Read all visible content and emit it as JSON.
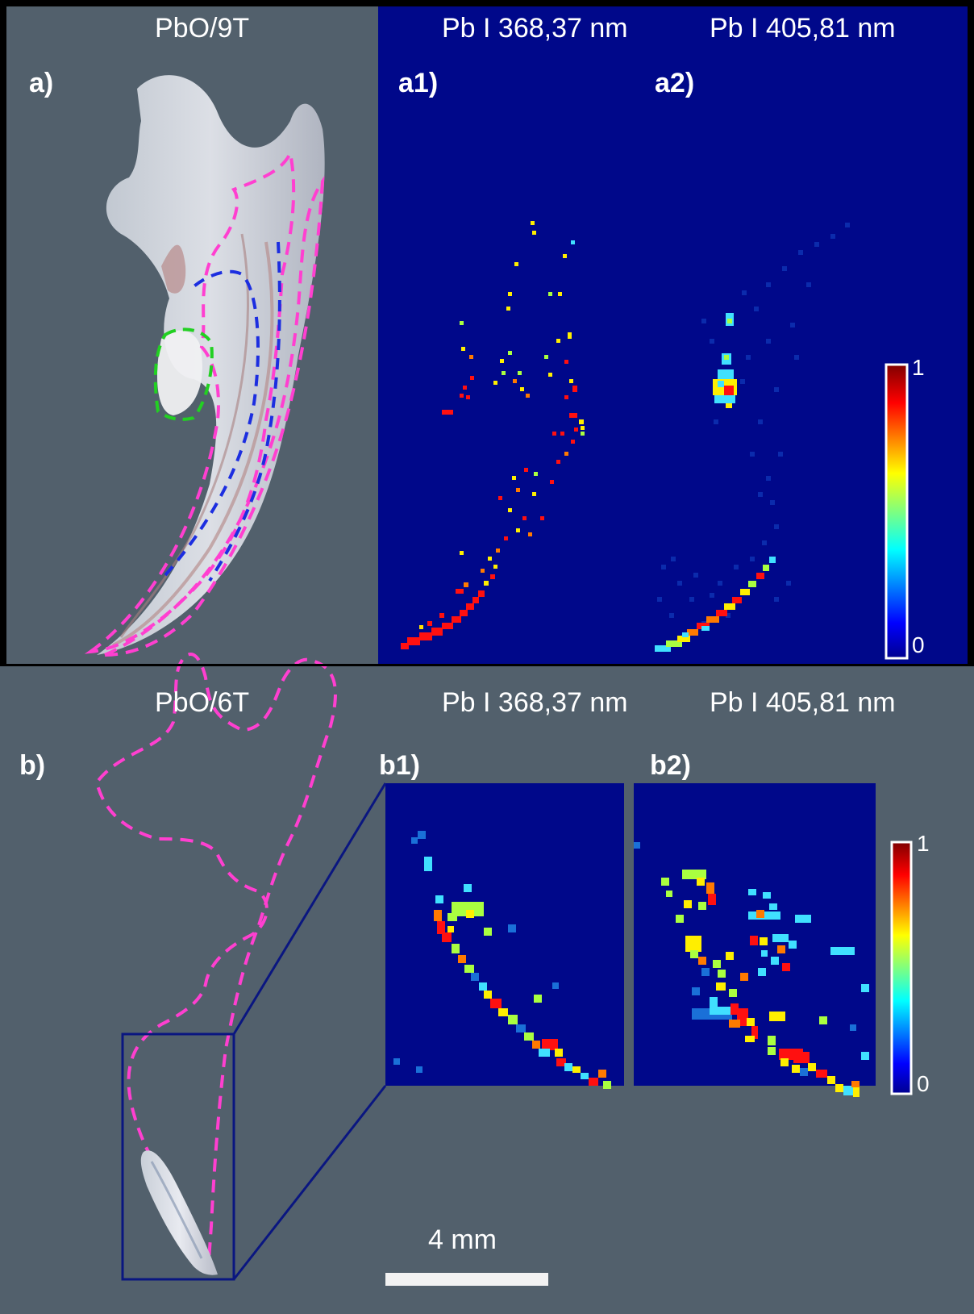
{
  "top": {
    "sample_title": "PbO/9T",
    "map1_title": "Pb I 368,37 nm",
    "map2_title": "Pb I 405,81 nm",
    "label_a": "a)",
    "label_a1": "a1)",
    "label_a2": "a2)",
    "colorbar_max": "1",
    "colorbar_min": "0"
  },
  "bottom": {
    "sample_title": "PbO/6T",
    "map1_title": "Pb I 368,37 nm",
    "map2_title": "Pb I 405,81 nm",
    "label_b": "b)",
    "label_b1": "b1)",
    "label_b2": "b2)",
    "colorbar_max": "1",
    "colorbar_min": "0",
    "scale_bar": "4 mm"
  },
  "colors": {
    "gray_bg": "#52606c",
    "map_bg": "#00088a",
    "outline_pink": "#ff3fd0",
    "outline_blue": "#1c2ee0",
    "outline_green": "#22d022",
    "zoom_box": "#0a1680"
  },
  "colormap": "jet"
}
